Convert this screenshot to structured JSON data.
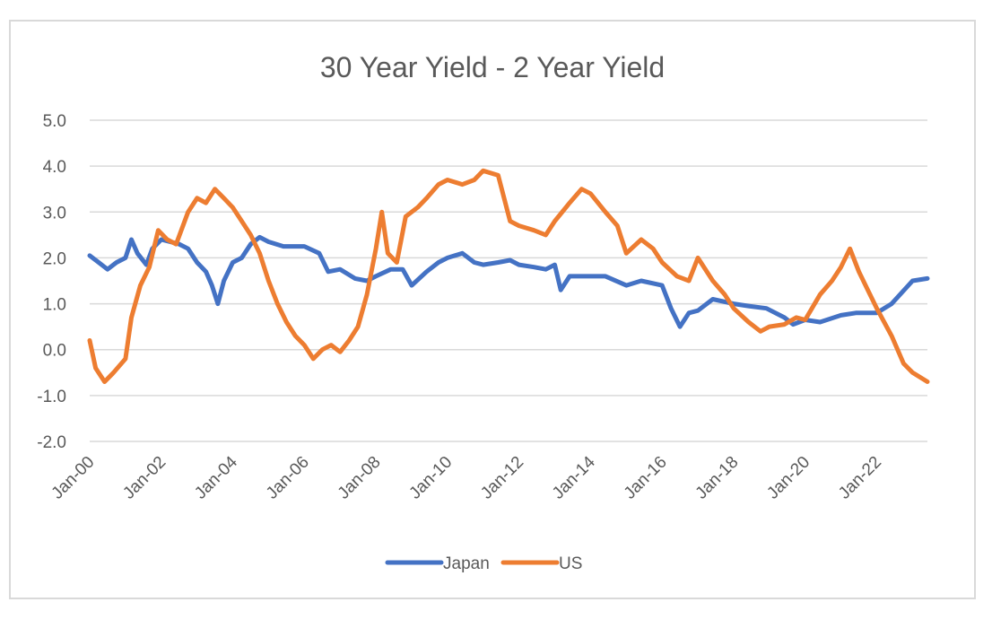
{
  "chart_data": {
    "type": "line",
    "title": "30 Year Yield - 2 Year Yield",
    "xlabel": "",
    "ylabel": "",
    "ylim": [
      -2.0,
      5.0
    ],
    "y_ticks": [
      "5.0",
      "4.0",
      "3.0",
      "2.0",
      "1.0",
      "0.0",
      "-1.0",
      "-2.0"
    ],
    "x_range": [
      "2000-01",
      "2023-06"
    ],
    "x_ticks": [
      "Jan-00",
      "Jan-02",
      "Jan-04",
      "Jan-06",
      "Jan-08",
      "Jan-10",
      "Jan-12",
      "Jan-14",
      "Jan-16",
      "Jan-18",
      "Jan-20",
      "Jan-22"
    ],
    "grid": "horizontal",
    "legend": "bottom",
    "series": [
      {
        "name": "Japan",
        "color": "#4472c4",
        "points": [
          [
            "2000-01",
            2.05
          ],
          [
            "2000-04",
            1.9
          ],
          [
            "2000-07",
            1.75
          ],
          [
            "2000-10",
            1.9
          ],
          [
            "2001-01",
            2.0
          ],
          [
            "2001-03",
            2.4
          ],
          [
            "2001-05",
            2.1
          ],
          [
            "2001-08",
            1.85
          ],
          [
            "2001-10",
            2.2
          ],
          [
            "2002-01",
            2.4
          ],
          [
            "2002-04",
            2.35
          ],
          [
            "2002-07",
            2.3
          ],
          [
            "2002-10",
            2.2
          ],
          [
            "2003-01",
            1.9
          ],
          [
            "2003-04",
            1.7
          ],
          [
            "2003-06",
            1.4
          ],
          [
            "2003-08",
            1.0
          ],
          [
            "2003-10",
            1.5
          ],
          [
            "2004-01",
            1.9
          ],
          [
            "2004-04",
            2.0
          ],
          [
            "2004-07",
            2.3
          ],
          [
            "2004-10",
            2.45
          ],
          [
            "2005-01",
            2.35
          ],
          [
            "2005-06",
            2.25
          ],
          [
            "2006-01",
            2.25
          ],
          [
            "2006-06",
            2.1
          ],
          [
            "2006-09",
            1.7
          ],
          [
            "2007-01",
            1.75
          ],
          [
            "2007-06",
            1.55
          ],
          [
            "2007-10",
            1.5
          ],
          [
            "2008-01",
            1.6
          ],
          [
            "2008-06",
            1.75
          ],
          [
            "2008-10",
            1.75
          ],
          [
            "2009-01",
            1.4
          ],
          [
            "2009-06",
            1.7
          ],
          [
            "2009-10",
            1.9
          ],
          [
            "2010-01",
            2.0
          ],
          [
            "2010-06",
            2.1
          ],
          [
            "2010-10",
            1.9
          ],
          [
            "2011-01",
            1.85
          ],
          [
            "2011-06",
            1.9
          ],
          [
            "2011-10",
            1.95
          ],
          [
            "2012-01",
            1.85
          ],
          [
            "2012-06",
            1.8
          ],
          [
            "2012-10",
            1.75
          ],
          [
            "2013-01",
            1.85
          ],
          [
            "2013-03",
            1.3
          ],
          [
            "2013-06",
            1.6
          ],
          [
            "2014-01",
            1.6
          ],
          [
            "2014-06",
            1.6
          ],
          [
            "2015-01",
            1.4
          ],
          [
            "2015-06",
            1.5
          ],
          [
            "2016-01",
            1.4
          ],
          [
            "2016-04",
            0.9
          ],
          [
            "2016-07",
            0.5
          ],
          [
            "2016-10",
            0.8
          ],
          [
            "2017-01",
            0.85
          ],
          [
            "2017-06",
            1.1
          ],
          [
            "2018-01",
            1.0
          ],
          [
            "2018-06",
            0.95
          ],
          [
            "2018-12",
            0.9
          ],
          [
            "2019-06",
            0.7
          ],
          [
            "2019-09",
            0.55
          ],
          [
            "2020-01",
            0.65
          ],
          [
            "2020-06",
            0.6
          ],
          [
            "2021-01",
            0.75
          ],
          [
            "2021-06",
            0.8
          ],
          [
            "2022-01",
            0.8
          ],
          [
            "2022-06",
            1.0
          ],
          [
            "2023-01",
            1.5
          ],
          [
            "2023-06",
            1.55
          ]
        ]
      },
      {
        "name": "US",
        "color": "#ed7d31",
        "points": [
          [
            "2000-01",
            0.2
          ],
          [
            "2000-03",
            -0.4
          ],
          [
            "2000-06",
            -0.7
          ],
          [
            "2000-09",
            -0.5
          ],
          [
            "2001-01",
            -0.2
          ],
          [
            "2001-03",
            0.7
          ],
          [
            "2001-06",
            1.4
          ],
          [
            "2001-09",
            1.8
          ],
          [
            "2001-12",
            2.6
          ],
          [
            "2002-03",
            2.4
          ],
          [
            "2002-06",
            2.3
          ],
          [
            "2002-10",
            3.0
          ],
          [
            "2003-01",
            3.3
          ],
          [
            "2003-04",
            3.2
          ],
          [
            "2003-07",
            3.5
          ],
          [
            "2003-10",
            3.3
          ],
          [
            "2004-01",
            3.1
          ],
          [
            "2004-04",
            2.8
          ],
          [
            "2004-07",
            2.5
          ],
          [
            "2004-10",
            2.1
          ],
          [
            "2005-01",
            1.5
          ],
          [
            "2005-04",
            1.0
          ],
          [
            "2005-07",
            0.6
          ],
          [
            "2005-10",
            0.3
          ],
          [
            "2006-01",
            0.1
          ],
          [
            "2006-04",
            -0.2
          ],
          [
            "2006-07",
            0.0
          ],
          [
            "2006-10",
            0.1
          ],
          [
            "2007-01",
            -0.05
          ],
          [
            "2007-04",
            0.2
          ],
          [
            "2007-07",
            0.5
          ],
          [
            "2007-10",
            1.2
          ],
          [
            "2008-01",
            2.2
          ],
          [
            "2008-03",
            3.0
          ],
          [
            "2008-05",
            2.1
          ],
          [
            "2008-08",
            1.9
          ],
          [
            "2008-11",
            2.9
          ],
          [
            "2009-03",
            3.1
          ],
          [
            "2009-06",
            3.3
          ],
          [
            "2009-10",
            3.6
          ],
          [
            "2010-01",
            3.7
          ],
          [
            "2010-06",
            3.6
          ],
          [
            "2010-10",
            3.7
          ],
          [
            "2011-01",
            3.9
          ],
          [
            "2011-06",
            3.8
          ],
          [
            "2011-10",
            2.8
          ],
          [
            "2012-01",
            2.7
          ],
          [
            "2012-06",
            2.6
          ],
          [
            "2012-10",
            2.5
          ],
          [
            "2013-01",
            2.8
          ],
          [
            "2013-06",
            3.2
          ],
          [
            "2013-10",
            3.5
          ],
          [
            "2014-01",
            3.4
          ],
          [
            "2014-06",
            3.0
          ],
          [
            "2014-10",
            2.7
          ],
          [
            "2015-01",
            2.1
          ],
          [
            "2015-06",
            2.4
          ],
          [
            "2015-10",
            2.2
          ],
          [
            "2016-01",
            1.9
          ],
          [
            "2016-06",
            1.6
          ],
          [
            "2016-10",
            1.5
          ],
          [
            "2017-01",
            2.0
          ],
          [
            "2017-06",
            1.5
          ],
          [
            "2017-10",
            1.2
          ],
          [
            "2018-01",
            0.9
          ],
          [
            "2018-06",
            0.6
          ],
          [
            "2018-10",
            0.4
          ],
          [
            "2019-01",
            0.5
          ],
          [
            "2019-06",
            0.55
          ],
          [
            "2019-10",
            0.7
          ],
          [
            "2020-01",
            0.65
          ],
          [
            "2020-06",
            1.2
          ],
          [
            "2020-10",
            1.5
          ],
          [
            "2021-01",
            1.8
          ],
          [
            "2021-04",
            2.2
          ],
          [
            "2021-07",
            1.7
          ],
          [
            "2021-10",
            1.3
          ],
          [
            "2022-01",
            0.9
          ],
          [
            "2022-06",
            0.3
          ],
          [
            "2022-10",
            -0.3
          ],
          [
            "2023-01",
            -0.5
          ],
          [
            "2023-06",
            -0.7
          ]
        ]
      }
    ]
  }
}
